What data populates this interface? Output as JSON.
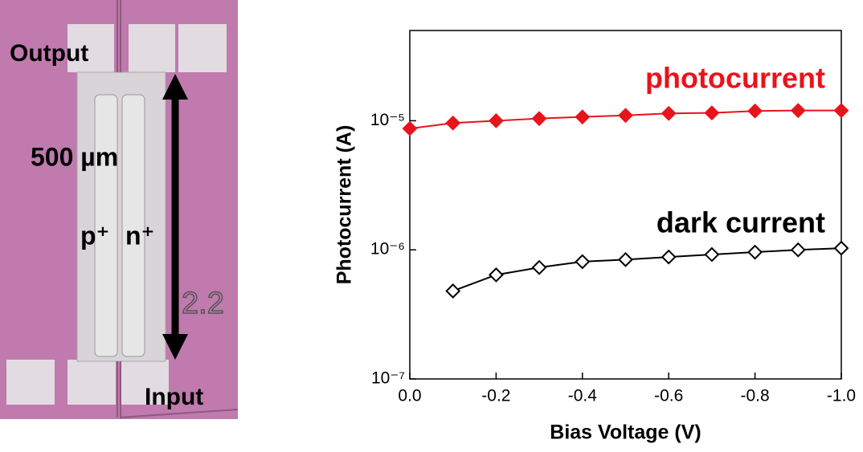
{
  "image": {
    "labels": {
      "output": "Output",
      "length": "500 µm",
      "p": "p⁺",
      "n": "n⁺",
      "input": "Input",
      "chip_id": "2.2"
    }
  },
  "chart_data": {
    "type": "line",
    "log_y": true,
    "x_label": "Bias Voltage (V)",
    "y_label": "Photocurrent (A)",
    "x": [
      0,
      -0.1,
      -0.2,
      -0.3,
      -0.4,
      -0.5,
      -0.6,
      -0.7,
      -0.8,
      -0.9,
      -1.0
    ],
    "series": [
      {
        "name": "photocurrent",
        "color": "#e8141b",
        "filled": true,
        "values": [
          8.7e-06,
          9.6e-06,
          1e-05,
          1.04e-05,
          1.07e-05,
          1.1e-05,
          1.14e-05,
          1.15e-05,
          1.19e-05,
          1.2e-05,
          1.2e-05
        ]
      },
      {
        "name": "dark current",
        "color": "#000000",
        "filled": false,
        "values": [
          null,
          4.8e-07,
          6.4e-07,
          7.3e-07,
          8.1e-07,
          8.4e-07,
          8.8e-07,
          9.2e-07,
          9.6e-07,
          1e-06,
          1.03e-06
        ]
      }
    ],
    "xlim": [
      0,
      -1.0
    ],
    "xticks": [
      {
        "value": 0,
        "label": "0.0"
      },
      -0.2,
      -0.4,
      -0.6,
      -0.8,
      {
        "value": -1.0,
        "label": "-1.0"
      }
    ],
    "ylim": [
      1e-07,
      5e-05
    ],
    "yticks": [
      {
        "value": 1e-07,
        "label": "10⁻⁷"
      },
      {
        "value": 1e-06,
        "label": "10⁻⁶"
      },
      {
        "value": 1e-05,
        "label": "10⁻⁵"
      }
    ]
  }
}
